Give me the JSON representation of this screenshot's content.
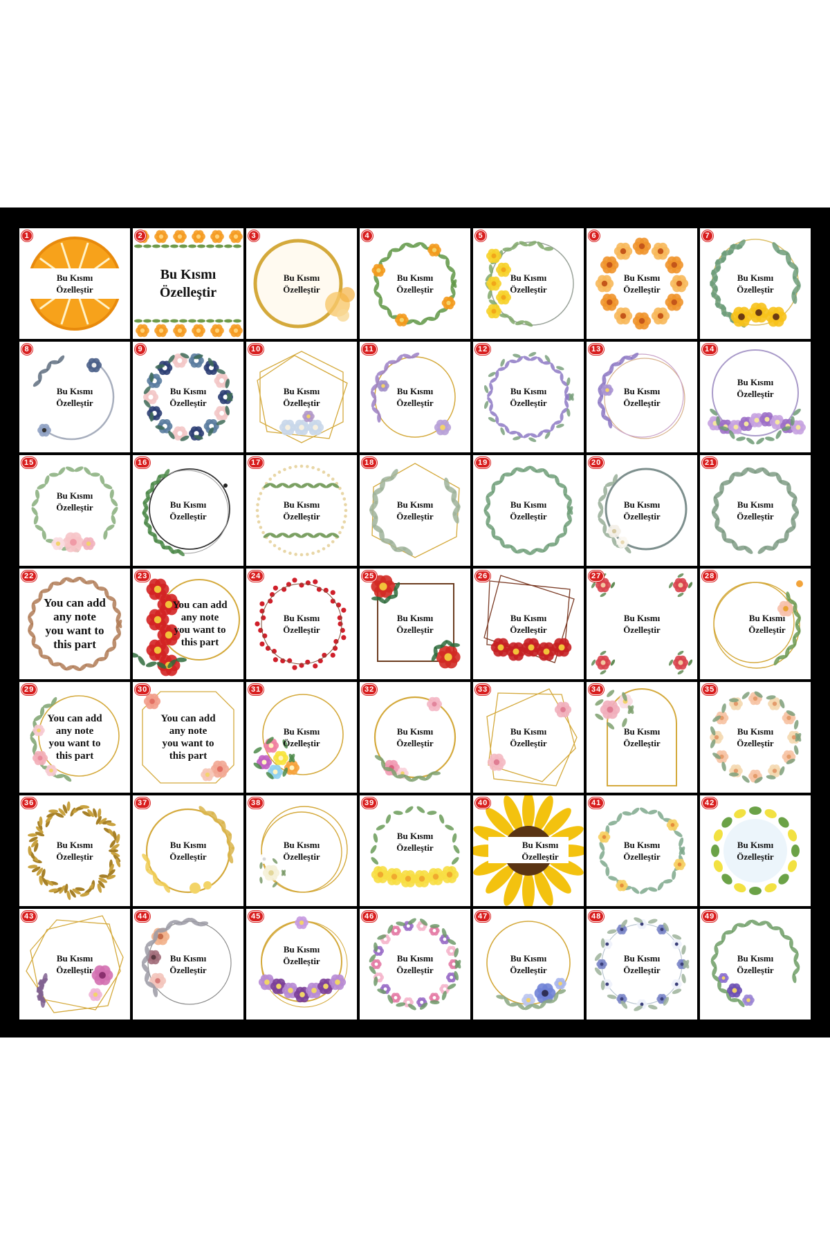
{
  "default_label": "Bu Kısmı Özelleştir",
  "note_label": "You can add any note you want to this part",
  "colors": {
    "board": "#000000",
    "badge": "#d81e1e",
    "gold": "#d4a93b"
  },
  "designs": [
    {
      "number": "1",
      "text": "Bu Kısmı\nÖzelleştir",
      "motif": "orange-slice"
    },
    {
      "number": "2",
      "text": "Bu Kısmı\nÖzelleştir",
      "motif": "orange-border"
    },
    {
      "number": "3",
      "text": "Bu Kısmı\nÖzelleştir",
      "motif": "gold-circle-bubbles"
    },
    {
      "number": "4",
      "text": "Bu Kısmı\nÖzelleştir",
      "motif": "orange-leaf-wreath"
    },
    {
      "number": "5",
      "text": "Bu Kısmı\nÖzelleştir",
      "motif": "lemon-wreath"
    },
    {
      "number": "6",
      "text": "Bu Kısmı\nÖzelleştir",
      "motif": "orange-lily-wreath"
    },
    {
      "number": "7",
      "text": "Bu Kısmı\nÖzelleştir",
      "motif": "sunflower-eucalyptus"
    },
    {
      "number": "8",
      "text": "Bu Kısmı\nÖzelleştir",
      "motif": "blue-anemone-ring"
    },
    {
      "number": "9",
      "text": "Bu Kısmı\nÖzelleştir",
      "motif": "navy-rose-wreath"
    },
    {
      "number": "10",
      "text": "Bu Kısmı\nÖzelleştir",
      "motif": "gold-geometric-roses"
    },
    {
      "number": "11",
      "text": "Bu Kısmı\nÖzelleştir",
      "motif": "lavender-gold-ring"
    },
    {
      "number": "12",
      "text": "Bu Kısmı\nÖzelleştir",
      "motif": "lavender-wreath"
    },
    {
      "number": "13",
      "text": "Bu Kısmı\nÖzelleştir",
      "motif": "lavender-double-ring"
    },
    {
      "number": "14",
      "text": "Bu Kısmı\nÖzelleştir",
      "motif": "purple-floral-ring"
    },
    {
      "number": "15",
      "text": "Bu Kısmı\nÖzelleştir",
      "motif": "pink-peony-wreath"
    },
    {
      "number": "16",
      "text": "Bu Kısmı\nÖzelleştir",
      "motif": "dark-ring-greenery"
    },
    {
      "number": "17",
      "text": "Bu Kısmı\nÖzelleştir",
      "motif": "dotted-circle-leaves"
    },
    {
      "number": "18",
      "text": "Bu Kısmı\nÖzelleştir",
      "motif": "gold-hexagon-eucalyptus"
    },
    {
      "number": "19",
      "text": "Bu Kısmı\nÖzelleştir",
      "motif": "eucalyptus-wreath"
    },
    {
      "number": "20",
      "text": "Bu Kısmı\nÖzelleştir",
      "motif": "silver-ring-white-flowers"
    },
    {
      "number": "21",
      "text": "Bu Kısmı\nÖzelleştir",
      "motif": "sage-leaf-wreath"
    },
    {
      "number": "22",
      "text": "You can add\nany note\nyou want to\nthis part",
      "motif": "brown-laurel-wreath"
    },
    {
      "number": "23",
      "text": "You can add\nany note\nyou want to\nthis part",
      "motif": "poinsettia-gold-ring"
    },
    {
      "number": "24",
      "text": "Bu Kısmı\nÖzelleştir",
      "motif": "red-berry-wreath"
    },
    {
      "number": "25",
      "text": "Bu Kısmı\nÖzelleştir",
      "motif": "poinsettia-square-frame"
    },
    {
      "number": "26",
      "text": "Bu Kısmı\nÖzelleştir",
      "motif": "poinsettia-geometric"
    },
    {
      "number": "27",
      "text": "Bu Kısmı\nÖzelleştir",
      "motif": "red-corner-florals"
    },
    {
      "number": "28",
      "text": "Bu Kısmı\nÖzelleştir",
      "motif": "gold-rings-butterfly"
    },
    {
      "number": "29",
      "text": "You can add\nany note\nyou want to\nthis part",
      "motif": "pink-rose-gold-ring"
    },
    {
      "number": "30",
      "text": "You can add\nany note\nyou want to\nthis part",
      "motif": "gold-octagon-roses"
    },
    {
      "number": "31",
      "text": "Bu Kısmı\nÖzelleştir",
      "motif": "colorful-bouquet-ring"
    },
    {
      "number": "32",
      "text": "Bu Kısmı\nÖzelleştir",
      "motif": "gold-ring-pink-roses"
    },
    {
      "number": "33",
      "text": "Bu Kısmı\nÖzelleştir",
      "motif": "gold-geometric-pink"
    },
    {
      "number": "34",
      "text": "Bu Kısmı\nÖzelleştir",
      "motif": "gold-arch-roses"
    },
    {
      "number": "35",
      "text": "Bu Kısmı\nÖzelleştir",
      "motif": "peach-rose-wreath"
    },
    {
      "number": "36",
      "text": "Bu Kısmı\nÖzelleştir",
      "motif": "gold-glitter-wreath"
    },
    {
      "number": "37",
      "text": "Bu Kısmı\nÖzelleştir",
      "motif": "gold-ring-leaves"
    },
    {
      "number": "38",
      "text": "Bu Kısmı\nÖzelleştir",
      "motif": "gold-ring-white-roses"
    },
    {
      "number": "39",
      "text": "Bu Kısmı\nÖzelleştir",
      "motif": "yellow-rose-wreath"
    },
    {
      "number": "40",
      "text": "Bu Kısmı\nÖzelleştir",
      "motif": "sunflower"
    },
    {
      "number": "41",
      "text": "Bu Kısmı\nÖzelleştir",
      "motif": "daisy-leaf-wreath"
    },
    {
      "number": "42",
      "text": "Bu Kısmı\nÖzelleştir",
      "motif": "lemon-ring"
    },
    {
      "number": "43",
      "text": "Bu Kısmı\nÖzelleştir",
      "motif": "gold-hexagon-magnolia"
    },
    {
      "number": "44",
      "text": "Bu Kısmı\nÖzelleştir",
      "motif": "dusty-rose-wreath"
    },
    {
      "number": "45",
      "text": "Bu Kısmı\nÖzelleştir",
      "motif": "purple-gold-ring"
    },
    {
      "number": "46",
      "text": "Bu Kısmı\nÖzelleştir",
      "motif": "pink-purple-wreath"
    },
    {
      "number": "47",
      "text": "Bu Kısmı\nÖzelleştir",
      "motif": "blue-anemone-gold-ring"
    },
    {
      "number": "48",
      "text": "Bu Kısmı\nÖzelleştir",
      "motif": "white-blue-floral-ring"
    },
    {
      "number": "49",
      "text": "Bu Kısmı\nÖzelleştir",
      "motif": "violet-leaf-crescent"
    }
  ]
}
